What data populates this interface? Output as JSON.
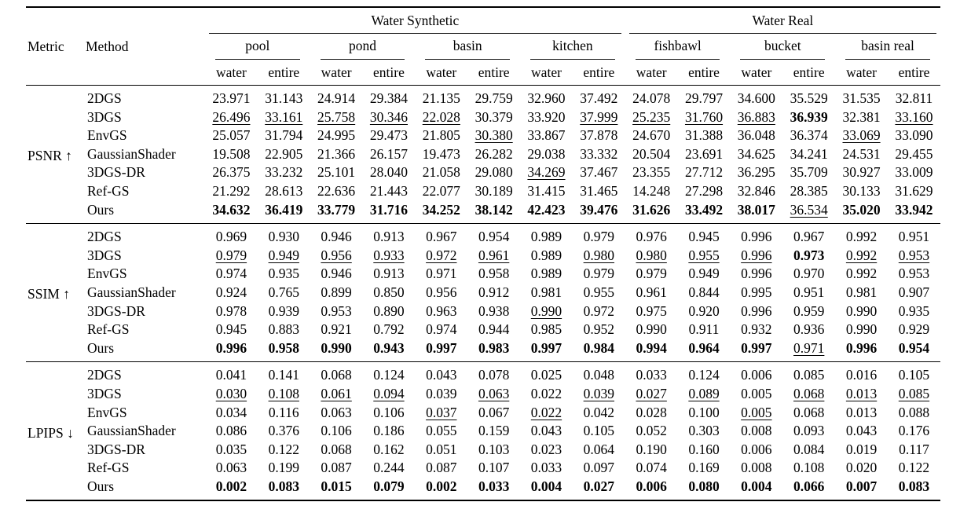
{
  "page": {
    "background_color": "#ffffff",
    "text_color": "#000000"
  },
  "table": {
    "header": {
      "metric": "Metric",
      "method": "Method",
      "groups": [
        {
          "label": "Water Synthetic",
          "scenes": [
            "pool",
            "pond",
            "basin",
            "kitchen"
          ]
        },
        {
          "label": "Water Real",
          "scenes": [
            "fishbawl",
            "bucket",
            "basin real"
          ]
        }
      ],
      "sub_columns": [
        "water",
        "entire"
      ]
    },
    "emphasis_legend": {
      "n": "normal",
      "b": "bold-best",
      "u": "underline-second-best"
    },
    "sections": [
      {
        "metric": "PSNR ↑",
        "rows": [
          {
            "method": "2DGS",
            "values": [
              "23.971",
              "31.143",
              "24.914",
              "29.384",
              "21.135",
              "29.759",
              "32.960",
              "37.492",
              "24.078",
              "29.797",
              "34.600",
              "35.529",
              "31.535",
              "32.811"
            ],
            "emphasis": "nnnnnnnnnnnnnn"
          },
          {
            "method": "3DGS",
            "values": [
              "26.496",
              "33.161",
              "25.758",
              "30.346",
              "22.028",
              "30.379",
              "33.920",
              "37.999",
              "25.235",
              "31.760",
              "36.883",
              "36.939",
              "32.381",
              "33.160"
            ],
            "emphasis": "uuuuunnuuuubnu"
          },
          {
            "method": "EnvGS",
            "values": [
              "25.057",
              "31.794",
              "24.995",
              "29.473",
              "21.805",
              "30.380",
              "33.867",
              "37.878",
              "24.670",
              "31.388",
              "36.048",
              "36.374",
              "33.069",
              "33.090"
            ],
            "emphasis": "nnnnnunnnnnnun"
          },
          {
            "method": "GaussianShader",
            "values": [
              "19.508",
              "22.905",
              "21.366",
              "26.157",
              "19.473",
              "26.282",
              "29.038",
              "33.332",
              "20.504",
              "23.691",
              "34.625",
              "34.241",
              "24.531",
              "29.455"
            ],
            "emphasis": "nnnnnnnnnnnnnn"
          },
          {
            "method": "3DGS-DR",
            "values": [
              "26.375",
              "33.232",
              "25.101",
              "28.040",
              "21.058",
              "29.080",
              "34.269",
              "37.467",
              "23.355",
              "27.712",
              "36.295",
              "35.709",
              "30.927",
              "33.009"
            ],
            "emphasis": "nnnnnnunnnnnnn"
          },
          {
            "method": "Ref-GS",
            "values": [
              "21.292",
              "28.613",
              "22.636",
              "21.443",
              "22.077",
              "30.189",
              "31.415",
              "31.465",
              "14.248",
              "27.298",
              "32.846",
              "28.385",
              "30.133",
              "31.629"
            ],
            "emphasis": "nnnnnnnnnnnnnn"
          },
          {
            "method": "Ours",
            "values": [
              "34.632",
              "36.419",
              "33.779",
              "31.716",
              "34.252",
              "38.142",
              "42.423",
              "39.476",
              "31.626",
              "33.492",
              "38.017",
              "36.534",
              "35.020",
              "33.942"
            ],
            "emphasis": "bbbbbbbbbbbubb"
          }
        ]
      },
      {
        "metric": "SSIM ↑",
        "rows": [
          {
            "method": "2DGS",
            "values": [
              "0.969",
              "0.930",
              "0.946",
              "0.913",
              "0.967",
              "0.954",
              "0.989",
              "0.979",
              "0.976",
              "0.945",
              "0.996",
              "0.967",
              "0.992",
              "0.951"
            ],
            "emphasis": "nnnnnnnnnnnnnn"
          },
          {
            "method": "3DGS",
            "values": [
              "0.979",
              "0.949",
              "0.956",
              "0.933",
              "0.972",
              "0.961",
              "0.989",
              "0.980",
              "0.980",
              "0.955",
              "0.996",
              "0.973",
              "0.992",
              "0.953"
            ],
            "emphasis": "uuuuuunuuuubuu"
          },
          {
            "method": "EnvGS",
            "values": [
              "0.974",
              "0.935",
              "0.946",
              "0.913",
              "0.971",
              "0.958",
              "0.989",
              "0.979",
              "0.979",
              "0.949",
              "0.996",
              "0.970",
              "0.992",
              "0.953"
            ],
            "emphasis": "nnnnnnnnnnnnnn"
          },
          {
            "method": "GaussianShader",
            "values": [
              "0.924",
              "0.765",
              "0.899",
              "0.850",
              "0.956",
              "0.912",
              "0.981",
              "0.955",
              "0.961",
              "0.844",
              "0.995",
              "0.951",
              "0.981",
              "0.907"
            ],
            "emphasis": "nnnnnnnnnnnnnn"
          },
          {
            "method": "3DGS-DR",
            "values": [
              "0.978",
              "0.939",
              "0.953",
              "0.890",
              "0.963",
              "0.938",
              "0.990",
              "0.972",
              "0.975",
              "0.920",
              "0.996",
              "0.959",
              "0.990",
              "0.935"
            ],
            "emphasis": "nnnnnnunnnnnnn"
          },
          {
            "method": "Ref-GS",
            "values": [
              "0.945",
              "0.883",
              "0.921",
              "0.792",
              "0.974",
              "0.944",
              "0.985",
              "0.952",
              "0.990",
              "0.911",
              "0.932",
              "0.936",
              "0.990",
              "0.929"
            ],
            "emphasis": "nnnnnnnnnnnnnn"
          },
          {
            "method": "Ours",
            "values": [
              "0.996",
              "0.958",
              "0.990",
              "0.943",
              "0.997",
              "0.983",
              "0.997",
              "0.984",
              "0.994",
              "0.964",
              "0.997",
              "0.971",
              "0.996",
              "0.954"
            ],
            "emphasis": "bbbbbbbbbbbubb"
          }
        ]
      },
      {
        "metric": "LPIPS ↓",
        "rows": [
          {
            "method": "2DGS",
            "values": [
              "0.041",
              "0.141",
              "0.068",
              "0.124",
              "0.043",
              "0.078",
              "0.025",
              "0.048",
              "0.033",
              "0.124",
              "0.006",
              "0.085",
              "0.016",
              "0.105"
            ],
            "emphasis": "nnnnnnnnnnnnnn"
          },
          {
            "method": "3DGS",
            "values": [
              "0.030",
              "0.108",
              "0.061",
              "0.094",
              "0.039",
              "0.063",
              "0.022",
              "0.039",
              "0.027",
              "0.089",
              "0.005",
              "0.068",
              "0.013",
              "0.085"
            ],
            "emphasis": "uuuununuuunuuu"
          },
          {
            "method": "EnvGS",
            "values": [
              "0.034",
              "0.116",
              "0.063",
              "0.106",
              "0.037",
              "0.067",
              "0.022",
              "0.042",
              "0.028",
              "0.100",
              "0.005",
              "0.068",
              "0.013",
              "0.088"
            ],
            "emphasis": "nnnnununnnunnn"
          },
          {
            "method": "GaussianShader",
            "values": [
              "0.086",
              "0.376",
              "0.106",
              "0.186",
              "0.055",
              "0.159",
              "0.043",
              "0.105",
              "0.052",
              "0.303",
              "0.008",
              "0.093",
              "0.043",
              "0.176"
            ],
            "emphasis": "nnnnnnnnnnnnnn"
          },
          {
            "method": "3DGS-DR",
            "values": [
              "0.035",
              "0.122",
              "0.068",
              "0.162",
              "0.051",
              "0.103",
              "0.023",
              "0.064",
              "0.190",
              "0.160",
              "0.006",
              "0.084",
              "0.019",
              "0.117"
            ],
            "emphasis": "nnnnnnnnnnnnnn"
          },
          {
            "method": "Ref-GS",
            "values": [
              "0.063",
              "0.199",
              "0.087",
              "0.244",
              "0.087",
              "0.107",
              "0.033",
              "0.097",
              "0.074",
              "0.169",
              "0.008",
              "0.108",
              "0.020",
              "0.122"
            ],
            "emphasis": "nnnnnnnnnnnnnn"
          },
          {
            "method": "Ours",
            "values": [
              "0.002",
              "0.083",
              "0.015",
              "0.079",
              "0.002",
              "0.033",
              "0.004",
              "0.027",
              "0.006",
              "0.080",
              "0.004",
              "0.066",
              "0.007",
              "0.083"
            ],
            "emphasis": "bbbbbbbbbbbbbb"
          }
        ]
      }
    ]
  }
}
